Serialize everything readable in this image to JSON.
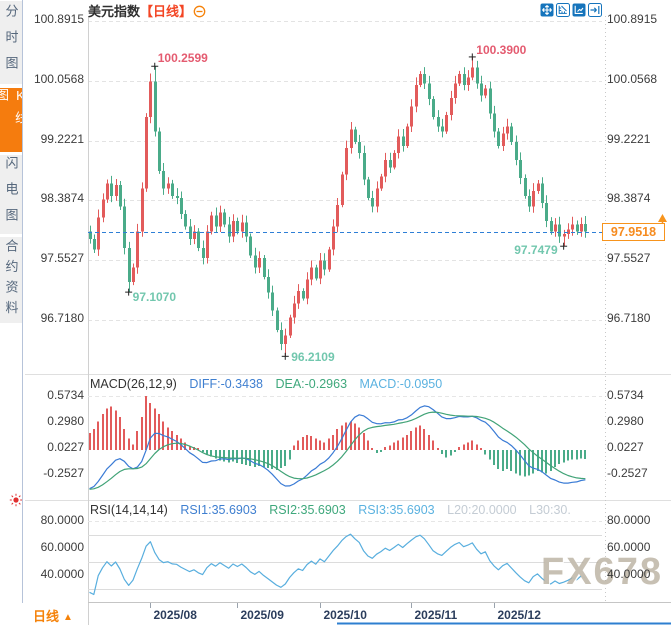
{
  "sidebar": {
    "items": [
      {
        "label": "分时图",
        "active": false
      },
      {
        "label": "K线图",
        "active": true
      },
      {
        "label": "闪电图",
        "active": false
      },
      {
        "label": "合约资料",
        "active": false
      }
    ]
  },
  "header": {
    "title": "美元指数",
    "period": "【日线】",
    "collapse_icon": "minus-circle",
    "toolbar_icons": [
      "pan-icon",
      "zoom-axis-icon",
      "auto-scale-icon",
      "goto-latest-icon"
    ]
  },
  "chart_data": {
    "type": "candlestick",
    "title": "美元指数 日线",
    "y_axis_labels": [
      "100.8915",
      "100.0568",
      "99.2221",
      "98.3874",
      "97.5527",
      "96.7180"
    ],
    "closes": [
      97.85,
      97.7,
      98.15,
      98.4,
      98.62,
      98.45,
      98.6,
      98.3,
      97.72,
      97.25,
      97.45,
      97.95,
      98.55,
      99.55,
      100.05,
      99.35,
      98.8,
      98.55,
      98.62,
      98.45,
      98.42,
      98.2,
      98.02,
      97.85,
      97.95,
      97.72,
      97.58,
      97.95,
      98.18,
      98.02,
      98.22,
      98.05,
      97.88,
      98.1,
      97.95,
      98.08,
      97.88,
      97.62,
      97.45,
      97.58,
      97.32,
      97.1,
      96.85,
      96.58,
      96.38,
      96.5,
      96.75,
      96.95,
      97.12,
      97.02,
      97.28,
      97.45,
      97.3,
      97.55,
      97.42,
      97.7,
      98.02,
      98.32,
      98.75,
      99.12,
      99.38,
      99.2,
      99.05,
      98.68,
      98.42,
      98.3,
      98.55,
      98.72,
      98.95,
      98.85,
      99.05,
      99.28,
      99.15,
      99.42,
      99.7,
      100.0,
      100.15,
      100.02,
      99.8,
      99.55,
      99.42,
      99.35,
      99.58,
      99.82,
      100.02,
      100.15,
      100.0,
      100.1,
      100.24,
      100.02,
      99.85,
      99.95,
      99.6,
      99.35,
      99.15,
      99.32,
      99.42,
      99.2,
      98.95,
      98.7,
      98.45,
      98.3,
      98.52,
      98.62,
      98.35,
      98.1,
      97.95,
      98.05,
      97.88,
      97.92,
      97.98,
      98.05,
      97.95,
      98.06,
      97.9518
    ],
    "specials": [
      {
        "i": 15,
        "type": "high",
        "price": 100.2599,
        "label": "100.2599"
      },
      {
        "i": 9,
        "type": "low",
        "price": 97.107,
        "label": "97.1070"
      },
      {
        "i": 45,
        "type": "low",
        "price": 96.2109,
        "label": "96.2109"
      },
      {
        "i": 88,
        "type": "high",
        "price": 100.39,
        "label": "100.3900"
      },
      {
        "i": 109,
        "type": "low",
        "price": 97.7479,
        "label": "97.7479"
      }
    ],
    "current_price": "97.9518",
    "x_ticks": [
      {
        "i": 14,
        "label": "2025/08"
      },
      {
        "i": 34,
        "label": "2025/09"
      },
      {
        "i": 53,
        "label": "2025/10"
      },
      {
        "i": 74,
        "label": "2025/11"
      },
      {
        "i": 93,
        "label": "2025/12"
      }
    ],
    "macd": {
      "title": "MACD(26,12,9)",
      "diff_label": "DIFF:-0.3438",
      "dea_label": "DEA:-0.2963",
      "macd_label": "MACD:-0.0950",
      "axis_labels": [
        "0.5734",
        "0.2980",
        "0.0227",
        "-0.2527"
      ],
      "hist": [
        0.18,
        0.22,
        0.3,
        0.38,
        0.44,
        0.46,
        0.42,
        0.35,
        0.22,
        0.12,
        0.06,
        0.2,
        0.35,
        0.5734,
        0.5,
        0.44,
        0.38,
        0.3,
        0.24,
        0.2,
        0.16,
        0.12,
        0.08,
        0.04,
        0.03,
        0.02,
        -0.02,
        -0.05,
        -0.07,
        -0.09,
        -0.11,
        -0.12,
        -0.13,
        -0.12,
        -0.14,
        -0.15,
        -0.16,
        -0.17,
        -0.18,
        -0.17,
        -0.18,
        -0.19,
        -0.2,
        -0.21,
        -0.19,
        -0.17,
        -0.1,
        0.05,
        0.1,
        0.14,
        0.16,
        0.15,
        0.12,
        0.1,
        0.08,
        0.12,
        0.16,
        0.22,
        0.26,
        0.29,
        0.3,
        0.28,
        0.24,
        0.18,
        0.1,
        0.02,
        -0.03,
        -0.02,
        0.03,
        0.05,
        0.08,
        0.1,
        0.13,
        0.16,
        0.2,
        0.24,
        0.26,
        0.22,
        0.16,
        0.1,
        0.02,
        -0.04,
        -0.08,
        -0.06,
        -0.02,
        0.03,
        0.06,
        0.08,
        0.1,
        0.06,
        0.02,
        -0.05,
        -0.1,
        -0.16,
        -0.2,
        -0.22,
        -0.2,
        -0.22,
        -0.25,
        -0.27,
        -0.28,
        -0.27,
        -0.25,
        -0.22,
        -0.24,
        -0.25,
        -0.22,
        -0.18,
        -0.15,
        -0.13,
        -0.11,
        -0.1,
        -0.1,
        -0.09,
        -0.095
      ]
    },
    "rsi": {
      "title": "RSI(14,14,14)",
      "rsi1_label": "RSI1:35.6903",
      "rsi2_label": "RSI2:35.6903",
      "rsi3_label": "RSI3:35.6903",
      "l20_label": "L20:20.0000",
      "l30_label": "L30:30.",
      "axis_labels": [
        "80.0000",
        "60.0000",
        "40.0000"
      ]
    }
  },
  "footer": {
    "period": "日线"
  },
  "watermark": "FX678",
  "colors": {
    "up": "#e25b5b",
    "down": "#4aab89",
    "diff_line": "#3a7bd5",
    "dea_line": "#41a377",
    "rsi_line": "#58aede",
    "current_line": "#2e7fd6",
    "price_box": "#f7941d",
    "high_label": "#e45b70",
    "low_label": "#72c7ae",
    "sidebar_active": "#f57c0e",
    "toolbar_blue": "#1574bc"
  }
}
